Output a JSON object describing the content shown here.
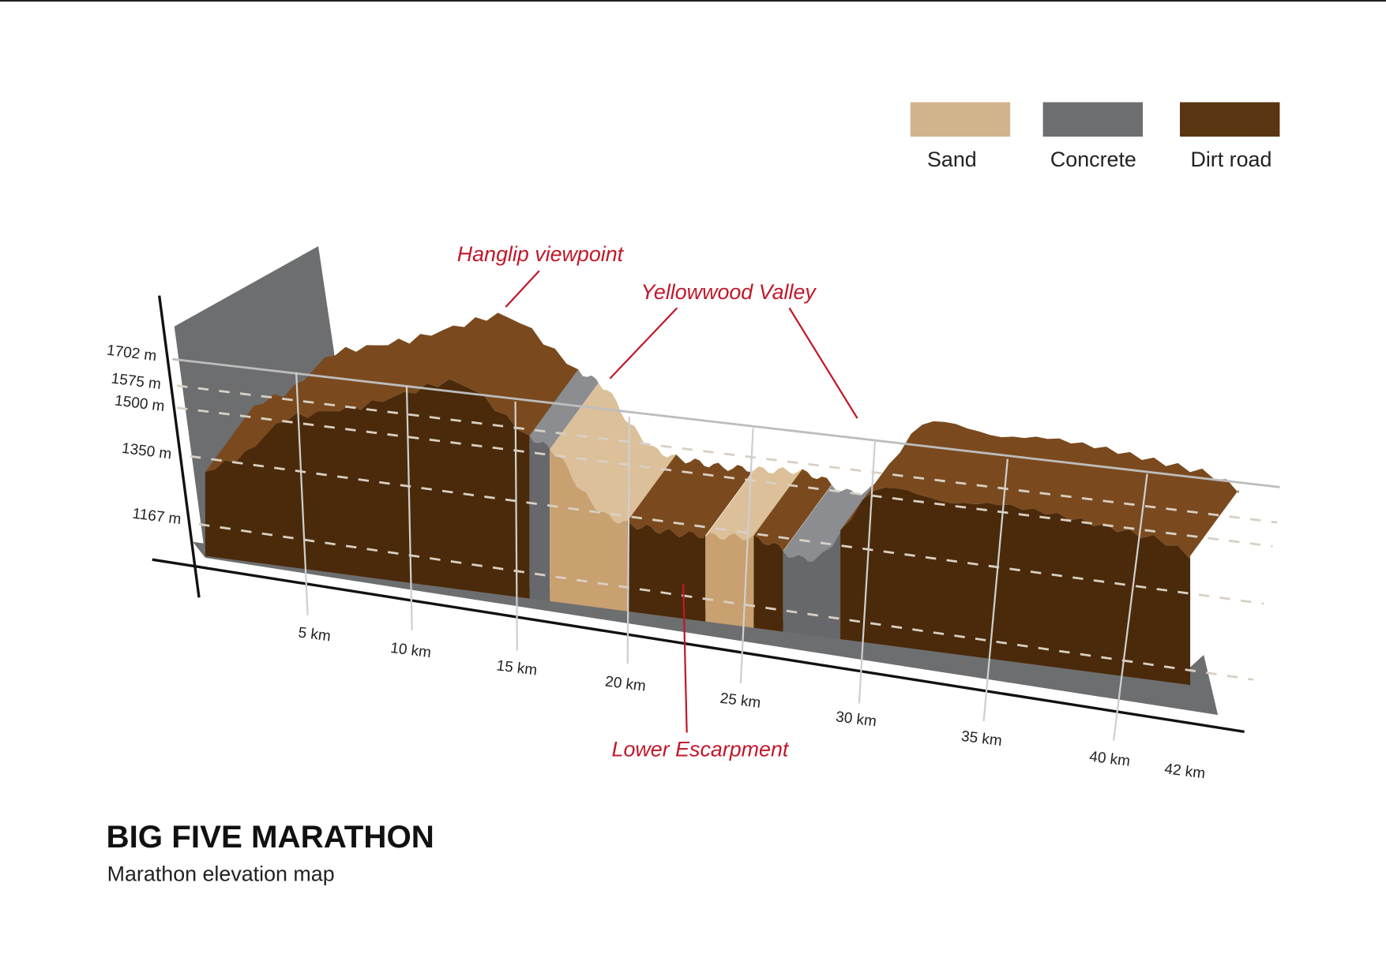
{
  "chart_data": {
    "type": "area",
    "style": "3d-elevation-profile",
    "title": "BIG FIVE MARATHON",
    "subtitle": "Marathon elevation map",
    "xlabel": "",
    "ylabel": "",
    "x_unit": "km",
    "y_unit": "m",
    "xlim": [
      0,
      42
    ],
    "x_ticks": [
      {
        "value": 5,
        "label": "5 km"
      },
      {
        "value": 10,
        "label": "10 km"
      },
      {
        "value": 15,
        "label": "15 km"
      },
      {
        "value": 20,
        "label": "20 km"
      },
      {
        "value": 25,
        "label": "25 km"
      },
      {
        "value": 30,
        "label": "30 km"
      },
      {
        "value": 35,
        "label": "35 km"
      },
      {
        "value": 40,
        "label": "40 km"
      },
      {
        "value": 42,
        "label": "42 km"
      }
    ],
    "y_ticks": [
      {
        "value": 1702,
        "label": "1702 m",
        "line": "solid"
      },
      {
        "value": 1575,
        "label": "1575 m",
        "line": "dashed"
      },
      {
        "value": 1500,
        "label": "1500 m",
        "line": "dashed"
      },
      {
        "value": 1350,
        "label": "1350 m",
        "line": "dashed"
      },
      {
        "value": 1167,
        "label": "1167 m",
        "line": "dashed"
      }
    ],
    "legend": {
      "position": "top-right",
      "items": [
        {
          "name": "Sand",
          "color": "#d2b48c"
        },
        {
          "name": "Concrete",
          "color": "#6d6e70"
        },
        {
          "name": "Dirt road",
          "color": "#5a3512"
        }
      ]
    },
    "profile": {
      "km": [
        0,
        2,
        4,
        6,
        8,
        10,
        12,
        13,
        14,
        15,
        16,
        17,
        18,
        19,
        20,
        22,
        24,
        25,
        26,
        27,
        28,
        29,
        30,
        31,
        33,
        35,
        37,
        39,
        41,
        42
      ],
      "elevation_m": [
        1350,
        1420,
        1560,
        1600,
        1640,
        1700,
        1760,
        1750,
        1700,
        1640,
        1600,
        1560,
        1450,
        1380,
        1360,
        1350,
        1360,
        1370,
        1360,
        1320,
        1330,
        1450,
        1580,
        1600,
        1570,
        1590,
        1580,
        1560,
        1540,
        1500
      ]
    },
    "surfaces": [
      {
        "from_km": 0,
        "to_km": 15.7,
        "surface": "Dirt road"
      },
      {
        "from_km": 15.7,
        "to_km": 16.6,
        "surface": "Concrete"
      },
      {
        "from_km": 16.6,
        "to_km": 20,
        "surface": "Sand"
      },
      {
        "from_km": 20,
        "to_km": 23.3,
        "surface": "Dirt road"
      },
      {
        "from_km": 23.3,
        "to_km": 25.3,
        "surface": "Sand"
      },
      {
        "from_km": 25.3,
        "to_km": 26.5,
        "surface": "Dirt road"
      },
      {
        "from_km": 26.5,
        "to_km": 28.8,
        "surface": "Concrete"
      },
      {
        "from_km": 28.8,
        "to_km": 42,
        "surface": "Dirt road"
      }
    ],
    "annotations": [
      {
        "text": "Hanglip viewpoint",
        "km": 12
      },
      {
        "text": "Yellowwood Valley",
        "km": [
          16,
          29
        ]
      },
      {
        "text": "Lower Escarpment",
        "km": 22.5
      }
    ],
    "grid": true
  }
}
